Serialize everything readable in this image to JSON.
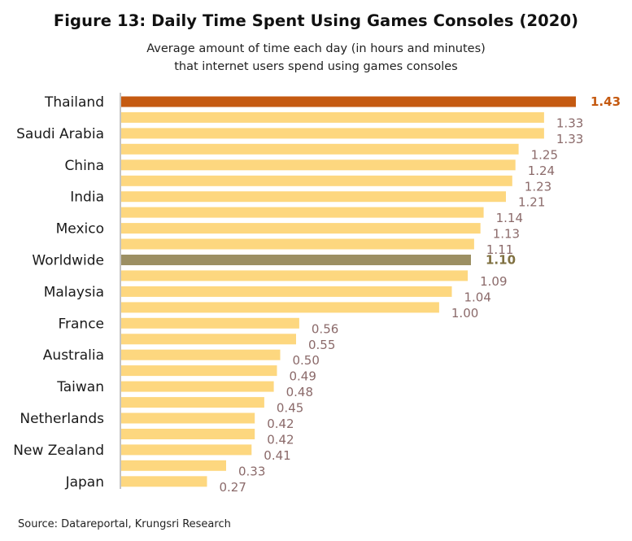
{
  "title": "Figure 13: Daily Time Spent Using Games Consoles (2020)",
  "subtitle_line1": "Average amount of time each day (in hours and minutes)",
  "subtitle_line2": "that internet users spend using games consoles",
  "source": "Source: Datareportal, Krungsri Research",
  "colors": {
    "default_bar": "#FDD77F",
    "highlight_bar": "#C55A11",
    "worldwide_bar": "#9C8F63",
    "default_label": "#8B6A6A",
    "highlight_label": "#C55A11",
    "worldwide_label": "#7F7040",
    "axis": "#888888",
    "category_text": "#1a1a1a"
  },
  "chart_data": {
    "type": "bar",
    "orientation": "horizontal",
    "xlim": [
      0,
      1.43
    ],
    "grid": false,
    "categories": [
      "Thailand",
      "",
      "Saudi Arabia",
      "",
      "China",
      "",
      "India",
      "",
      "Mexico",
      "",
      "Worldwide",
      "",
      "Malaysia",
      "",
      "France",
      "",
      "Australia",
      "",
      "Taiwan",
      "",
      "Netherlands",
      "",
      "New Zealand",
      "",
      "Japan"
    ],
    "values": [
      1.43,
      1.33,
      1.33,
      1.25,
      1.24,
      1.23,
      1.21,
      1.14,
      1.13,
      1.11,
      1.1,
      1.09,
      1.04,
      1.0,
      0.56,
      0.55,
      0.5,
      0.49,
      0.48,
      0.45,
      0.42,
      0.42,
      0.41,
      0.33,
      0.27
    ],
    "labels": [
      "1.43",
      "1.33",
      "1.33",
      "1.25",
      "1.24",
      "1.23",
      "1.21",
      "1.14",
      "1.13",
      "1.11",
      "1.10",
      "1.09",
      "1.04",
      "1.00",
      "0.56",
      "0.55",
      "0.50",
      "0.49",
      "0.48",
      "0.45",
      "0.42",
      "0.42",
      "0.41",
      "0.33",
      "0.27"
    ],
    "highlight_index": 0,
    "worldwide_index": 10
  }
}
